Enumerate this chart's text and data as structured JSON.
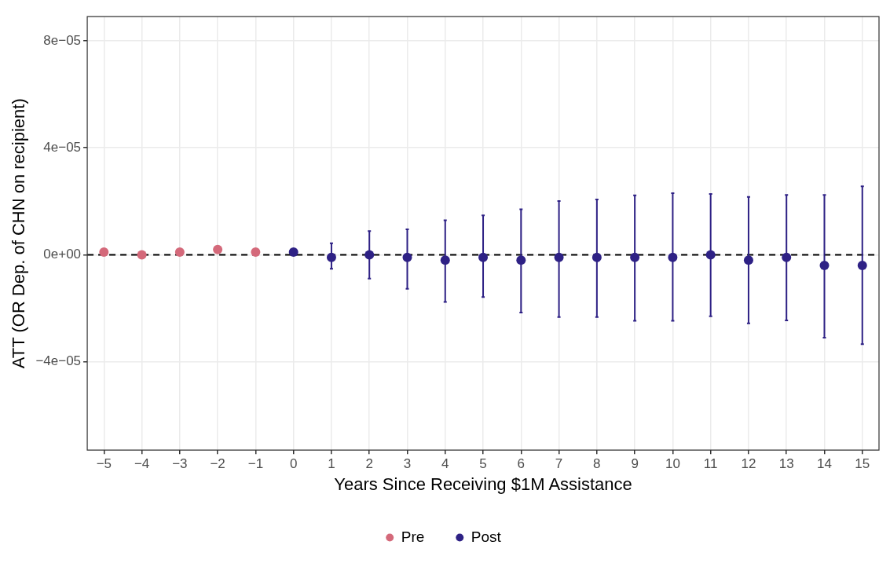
{
  "chart_data": {
    "type": "scatter",
    "xlabel": "Years Since Receiving $1M Assistance",
    "ylabel": "ATT (OR Dep. of CHN on recipient)",
    "xlim": [
      -5.44,
      15.44
    ],
    "xticks": [
      {
        "value": -5,
        "label": "−5"
      },
      {
        "value": -4,
        "label": "−4"
      },
      {
        "value": -3,
        "label": "−3"
      },
      {
        "value": -2,
        "label": "−2"
      },
      {
        "value": -1,
        "label": "−1"
      },
      0,
      1,
      2,
      3,
      4,
      5,
      6,
      7,
      8,
      9,
      10,
      11,
      12,
      13,
      14,
      15
    ],
    "ylim": [
      -7.3e-05,
      8.9e-05
    ],
    "yticks": [
      {
        "value": -4e-05,
        "label": "−4e−05"
      },
      {
        "value": 0,
        "label": "0e+00"
      },
      {
        "value": 4e-05,
        "label": "4e−05"
      },
      {
        "value": 8e-05,
        "label": "8e−05"
      }
    ],
    "grid": true,
    "legend": "bottom",
    "marker": "circle",
    "ref_lines": [
      {
        "axis": "y",
        "value": 0,
        "color": "#000000",
        "line_style": "dashed"
      }
    ],
    "series": [
      {
        "name": "Pre",
        "color": "#d4697a",
        "x": [
          -5,
          -4,
          -3,
          -2,
          -1
        ],
        "values": [
          1e-06,
          0,
          1e-06,
          2e-06,
          1e-06
        ]
      },
      {
        "name": "Post",
        "color": "#2e2185",
        "x": [
          0,
          1,
          2,
          3,
          4,
          5,
          6,
          7,
          8,
          9,
          10,
          11,
          12,
          13,
          14,
          15
        ],
        "values": [
          1e-06,
          -1e-06,
          0,
          -1e-06,
          -2e-06,
          -1e-06,
          -2e-06,
          -1e-06,
          -1e-06,
          -1e-06,
          -1e-06,
          0,
          -2e-06,
          -1e-06,
          -4e-06,
          -4e-06
        ],
        "errors": [
          null,
          [
            -5.2e-06,
            4.3e-06
          ],
          [
            -8.9e-06,
            8.9e-06
          ],
          [
            -1.27e-05,
            9.5e-06
          ],
          [
            -1.76e-05,
            1.29e-05
          ],
          [
            -1.58e-05,
            1.47e-05
          ],
          [
            -2.16e-05,
            1.7e-05
          ],
          [
            -2.33e-05,
            2.01e-05
          ],
          [
            -2.33e-05,
            2.07e-05
          ],
          [
            -2.47e-05,
            2.22e-05
          ],
          [
            -2.47e-05,
            2.3e-05
          ],
          [
            -2.3e-05,
            2.27e-05
          ],
          [
            -2.56e-05,
            2.16e-05
          ],
          [
            -2.45e-05,
            2.24e-05
          ],
          [
            -3.1e-05,
            2.24e-05
          ],
          [
            -3.34e-05,
            2.56e-05
          ]
        ]
      }
    ]
  }
}
